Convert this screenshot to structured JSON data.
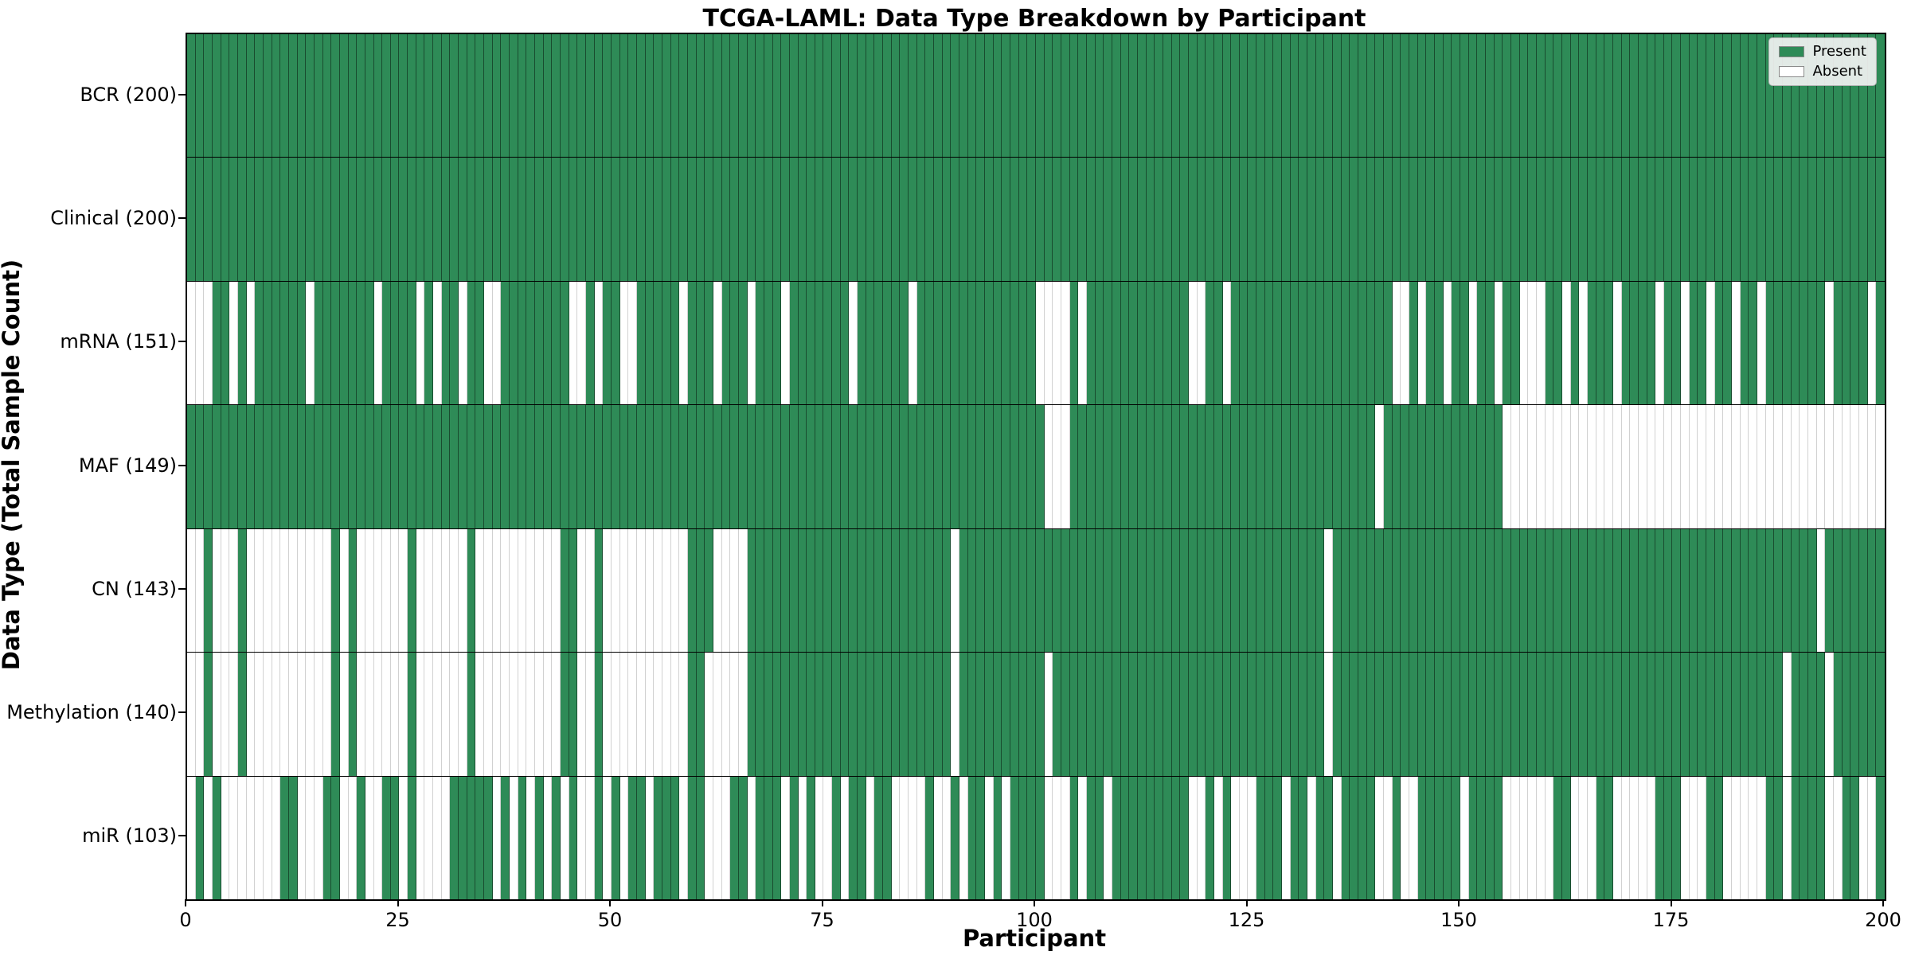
{
  "title": "TCGA-LAML: Data Type Breakdown by Participant",
  "legend": {
    "present_label": "Present",
    "absent_label": "Absent"
  },
  "colors": {
    "present": "#2e8b57",
    "absent": "#ffffff"
  },
  "chart_data": {
    "type": "heatmap",
    "title": "TCGA-LAML: Data Type Breakdown by Participant",
    "xlabel": "Participant",
    "ylabel": "Data Type (Total Sample Count)",
    "x_range": [
      0,
      200
    ],
    "n_participants": 200,
    "x_ticks": [
      0,
      25,
      50,
      75,
      100,
      125,
      150,
      175,
      200
    ],
    "grid": false,
    "legend_position": "upper right",
    "legend_entries": [
      "Present",
      "Absent"
    ],
    "value_encoding": {
      "1": "Present",
      "0": "Absent"
    },
    "rows": [
      {
        "label": "BCR (200)",
        "data_type": "BCR",
        "present_count": 200,
        "pattern": "11111111111111111111111111111111111111111111111111111111111111111111111111111111111111111111111111111111111111111111111111111111111111111111111111111111111111111111111111111111111111111111111111111111"
      },
      {
        "label": "Clinical (200)",
        "data_type": "Clinical",
        "present_count": 200,
        "pattern": "11111111111111111111111111111111111111111111111111111111111111111111111111111111111111111111111111111111111111111111111111111111111111111111111111111111111111111111111111111111111111111111111111111111"
      },
      {
        "label": "mRNA (151)",
        "data_type": "mRNA",
        "present_count": 151,
        "pattern": "00011010111111011111110111101011011001111111100101100111110111011101110111111101111110111111111111110000101111111111110011011111111111111111110010110110110110001101011101111011011011011011111110111101"
      },
      {
        "label": "MAF (149)",
        "data_type": "MAF",
        "present_count": 149,
        "pattern": "11111111111111111111111111111111111111111111111111111111111111111111111111111111111111111111111111111000111111111111111111111111111111111111011111111111111000000000000000000000000000000000000000000000"
      },
      {
        "label": "CN (143)",
        "data_type": "CN",
        "present_count": 143,
        "pattern": "00100010000000000101000000100000010000000000110010000000000111000011111111111111111111111101111111111111111111111111111111111111111111011111111111111111111111111111111111111111111111111111111101111111"
      },
      {
        "label": "Methylation (140)",
        "data_type": "Methylation",
        "present_count": 140,
        "pattern": "00100010000000000101000000100000010000000000110010000000000110000011111111111111111111111101111111111011111111111111111111111111111111011111111111111111111111111111111111111111111111111111011110111111"
      },
      {
        "label": "miR (103)",
        "data_type": "miR",
        "present_count": 103,
        "pattern": "01010000000110001100100110100001111101010101010010101101110110001101110101001011011000010010110101111000101101111111110010100011101101101111001001111101111000000110001100000111000110000011011110011001"
      }
    ]
  }
}
